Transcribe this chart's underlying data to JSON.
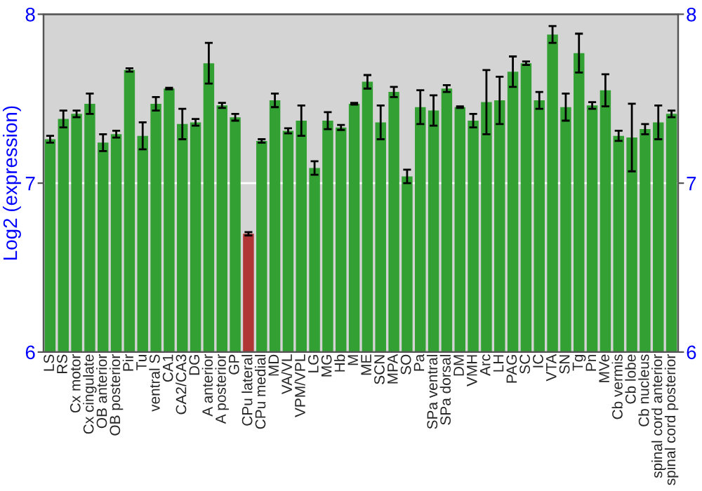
{
  "chart_data": {
    "type": "bar",
    "ylabel": "Log2 (expression)",
    "categories": [
      "LS",
      "RS",
      "Cx motor",
      "Cx cingulate",
      "OB anterior",
      "OB posterior",
      "Pir",
      "Tu",
      "ventral S",
      "CA1",
      "CA2/CA3",
      "DG",
      "A anterior",
      "A posterior",
      "GP",
      "CPu lateral",
      "CPu medial",
      "MD",
      "VA/VL",
      "VPM/VPL",
      "LG",
      "MG",
      "Hb",
      "M",
      "ME",
      "SCN",
      "MPA",
      "SO",
      "Pa",
      "SPa ventral",
      "SPa dorsal",
      "DM",
      "VMH",
      "Arc",
      "LH",
      "PAG",
      "SC",
      "IC",
      "VTA",
      "SN",
      "Tg",
      "Pn",
      "MVe",
      "Cb vermis",
      "Cb lobe",
      "Cb nucleus",
      "spinal cord anterior",
      "spinal cord posterior"
    ],
    "values": [
      7.26,
      7.38,
      7.41,
      7.47,
      7.24,
      7.29,
      7.67,
      7.28,
      7.47,
      7.56,
      7.35,
      7.36,
      7.71,
      7.46,
      7.39,
      6.7,
      7.25,
      7.49,
      7.31,
      7.37,
      7.09,
      7.37,
      7.33,
      7.47,
      7.6,
      7.36,
      7.54,
      7.04,
      7.45,
      7.43,
      7.56,
      7.45,
      7.37,
      7.48,
      7.49,
      7.66,
      7.71,
      7.49,
      7.88,
      7.45,
      7.77,
      7.46,
      7.55,
      7.28,
      7.27,
      7.32,
      7.36,
      7.41
    ],
    "errors": [
      0.02,
      0.05,
      0.02,
      0.06,
      0.05,
      0.02,
      0.01,
      0.08,
      0.04,
      0.005,
      0.09,
      0.02,
      0.12,
      0.015,
      0.02,
      0.01,
      0.01,
      0.04,
      0.015,
      0.09,
      0.04,
      0.05,
      0.015,
      0.005,
      0.04,
      0.1,
      0.03,
      0.04,
      0.1,
      0.09,
      0.02,
      0.005,
      0.04,
      0.19,
      0.14,
      0.09,
      0.01,
      0.05,
      0.05,
      0.08,
      0.115,
      0.02,
      0.095,
      0.03,
      0.2,
      0.03,
      0.1,
      0.02
    ],
    "colors": [
      "#33a033",
      "#33a033",
      "#33a033",
      "#33a033",
      "#33a033",
      "#33a033",
      "#33a033",
      "#33a033",
      "#33a033",
      "#33a033",
      "#33a033",
      "#33a033",
      "#33a033",
      "#33a033",
      "#33a033",
      "#b03535",
      "#33a033",
      "#33a033",
      "#33a033",
      "#33a033",
      "#33a033",
      "#33a033",
      "#33a033",
      "#33a033",
      "#33a033",
      "#33a033",
      "#33a033",
      "#33a033",
      "#33a033",
      "#33a033",
      "#33a033",
      "#33a033",
      "#33a033",
      "#33a033",
      "#33a033",
      "#33a033",
      "#33a033",
      "#33a033",
      "#33a033",
      "#33a033",
      "#33a033",
      "#33a033",
      "#33a033",
      "#33a033",
      "#33a033",
      "#33a033",
      "#33a033",
      "#33a033"
    ],
    "ylim": [
      6,
      8
    ],
    "yticks": [
      6,
      7,
      8
    ],
    "y2lim": [
      6,
      8
    ],
    "y2ticks": [
      6,
      7,
      8
    ],
    "grid": "y"
  }
}
